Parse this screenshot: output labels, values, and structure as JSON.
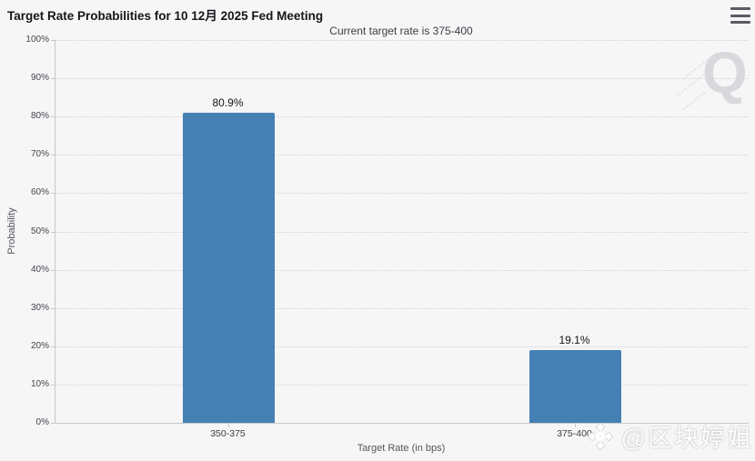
{
  "chart": {
    "menu_icon": "hamburger-menu",
    "watermark_letter": "Q",
    "social_watermark": "@区块婷姐"
  },
  "chart_data": {
    "type": "bar",
    "title": "Target Rate Probabilities for 10 12月 2025 Fed Meeting",
    "subtitle": "Current target rate is 375-400",
    "categories": [
      "350-375",
      "375-400"
    ],
    "values": [
      80.9,
      19.1
    ],
    "value_labels": [
      "80.9%",
      "19.1%"
    ],
    "xlabel": "Target Rate (in bps)",
    "ylabel": "Probability",
    "ylim": [
      0,
      100
    ],
    "ytick_step": 10,
    "yticks": [
      "0%",
      "10%",
      "20%",
      "30%",
      "40%",
      "50%",
      "60%",
      "70%",
      "80%",
      "90%",
      "100%"
    ],
    "grid": "horizontal-dotted",
    "legend": "none",
    "bar_color": "#4580b4",
    "background_color": "#f6f6f7"
  }
}
